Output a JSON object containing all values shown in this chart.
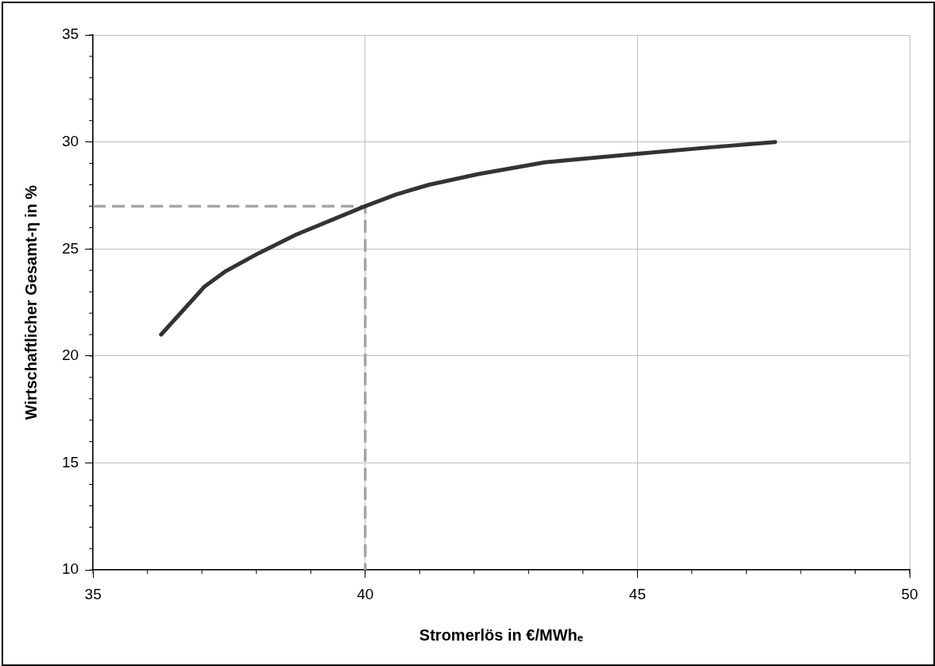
{
  "chart_data": {
    "type": "line",
    "xlabel": "Stromerlös in €/MWhₑ",
    "ylabel": "Wirtschaftlicher Gesamt-η in %",
    "xlim": [
      35,
      50
    ],
    "xticks": [
      35,
      40,
      45,
      50
    ],
    "ylim": [
      10,
      35
    ],
    "yticks": [
      10,
      15,
      20,
      25,
      30,
      35
    ],
    "grid": true,
    "legend": false,
    "marker": "none",
    "series": [
      {
        "color": "#333333",
        "line_style": "solid",
        "x": [
          36.25,
          37.05,
          37.43,
          38.04,
          38.73,
          40,
          40.56,
          41.17,
          42.08,
          43.3,
          45,
          46.34,
          47.53
        ],
        "values": [
          21,
          23.25,
          23.95,
          24.8,
          25.67,
          27,
          27.54,
          28,
          28.5,
          29.05,
          29.45,
          29.75,
          30
        ]
      },
      {
        "color": "#a6a6a6",
        "line_style": "dashed",
        "x": [
          35,
          40,
          40
        ],
        "values": [
          27,
          27,
          10
        ]
      }
    ]
  }
}
